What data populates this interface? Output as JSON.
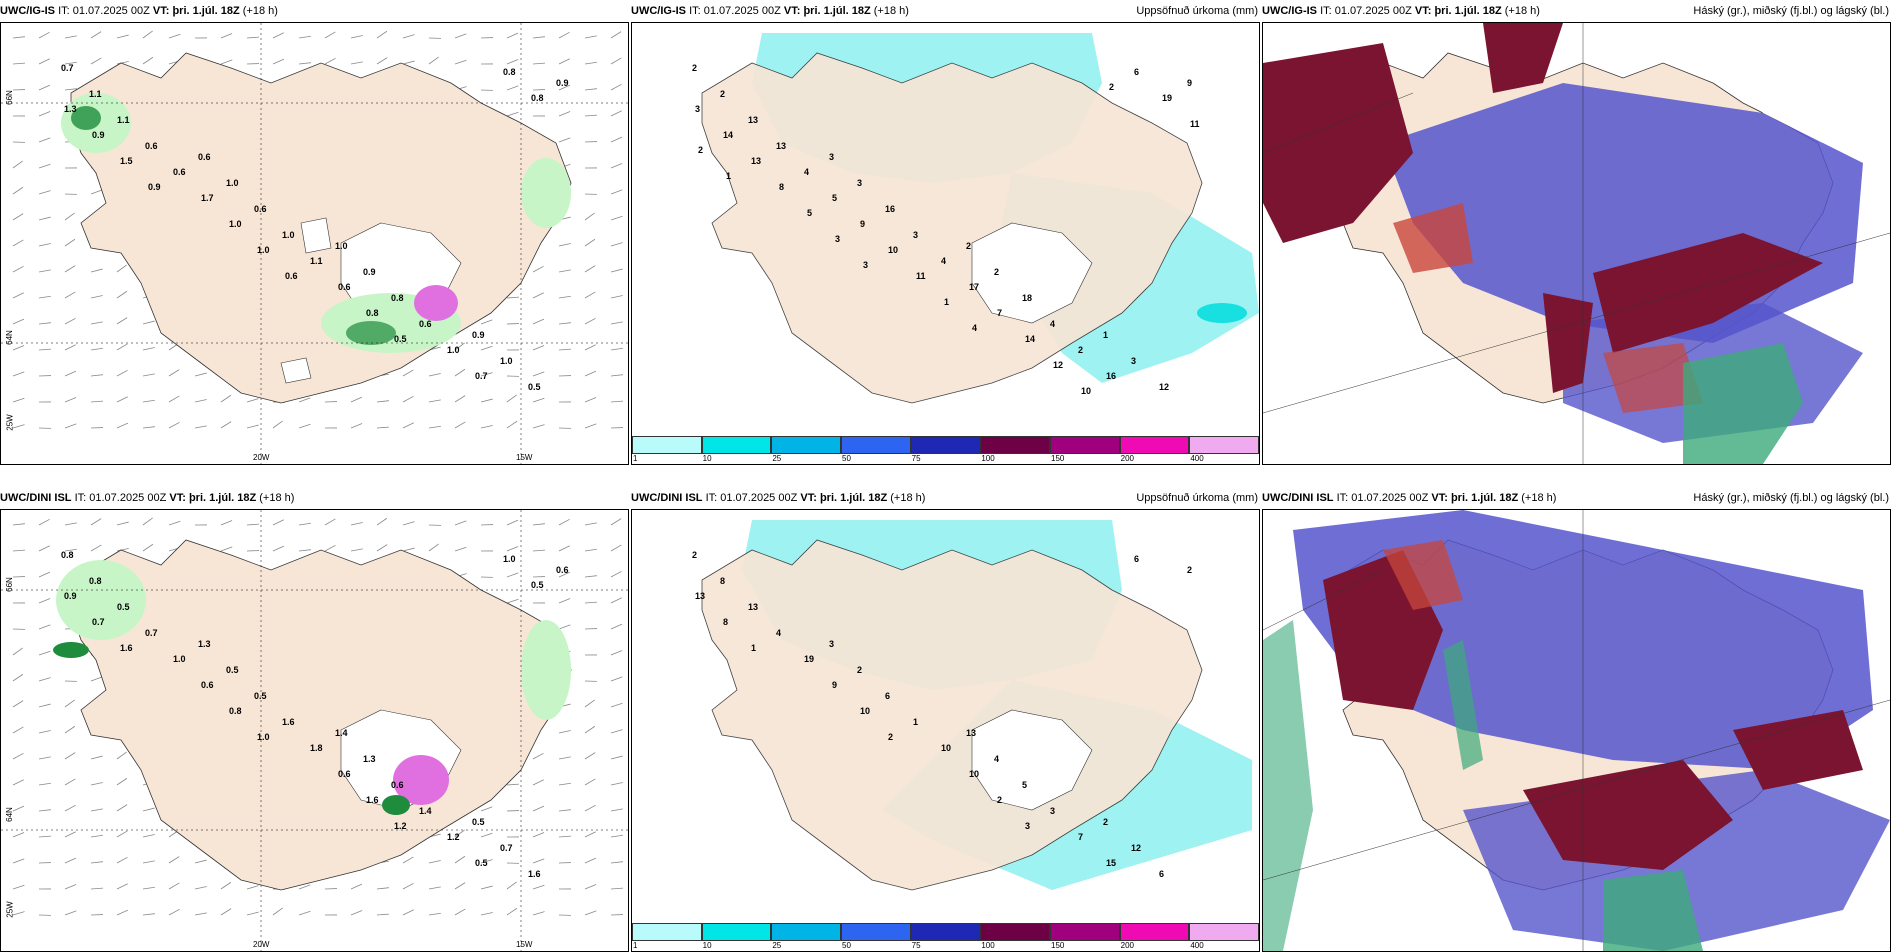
{
  "panels": [
    {
      "model": "UWC/IG-IS",
      "init_label": "IT:",
      "init": "01.07.2025 00Z",
      "valid_label": "VT:",
      "valid": "þri. 1.júl. 18Z",
      "lead": "(+18 h)",
      "right_title": "",
      "lon_labels": [
        "20W",
        "15W"
      ],
      "lat_labels": [
        "66N",
        "64N",
        "25W"
      ],
      "values": [
        "0.7",
        "0.6",
        "1.0",
        "0.9",
        "1.1",
        "1.0",
        "0.9",
        "1.0",
        "1.1",
        "0.6",
        "0.8",
        "0.5",
        "0.6",
        "1.0",
        "0.6",
        "0.9",
        "0.6",
        "1.1",
        "1.0",
        "1.3",
        "1.7",
        "0.6",
        "0.7",
        "0.9",
        "1.0",
        "0.8",
        "0.8",
        "1.5",
        "1.0",
        "0.5",
        "0.8",
        "0.9",
        "0.6"
      ]
    },
    {
      "model": "UWC/IG-IS",
      "init_label": "IT:",
      "init": "01.07.2025 00Z",
      "valid_label": "VT:",
      "valid": "þri. 1.júl. 18Z",
      "lead": "(+18 h)",
      "right_title": "Uppsöfnuð úrkoma (mm)",
      "values": [
        "2",
        "3",
        "2",
        "1",
        "2",
        "3",
        "2",
        "3",
        "13",
        "16",
        "18",
        "12",
        "13",
        "3",
        "4",
        "9",
        "4",
        "4",
        "2",
        "3",
        "5",
        "17",
        "16",
        "14",
        "9",
        "7",
        "6",
        "13",
        "10",
        "14",
        "19",
        "8",
        "11",
        "12",
        "11",
        "5",
        "1",
        "10",
        "2",
        "3",
        "4",
        "2",
        "1",
        "3"
      ],
      "colorbar": [
        "1",
        "10",
        "25",
        "50",
        "75",
        "100",
        "150",
        "200",
        "400"
      ]
    },
    {
      "model": "UWC/IG-IS",
      "init_label": "IT:",
      "init": "01.07.2025 00Z",
      "valid_label": "VT:",
      "valid": "þri. 1.júl. 18Z",
      "lead": "(+18 h)",
      "right_title": "Háský (gr.), miðský (fj.bl.) og lágský (bl.)"
    },
    {
      "model": "UWC/DINI ISL",
      "init_label": "IT:",
      "init": "01.07.2025 00Z",
      "valid_label": "VT:",
      "valid": "þri. 1.júl. 18Z",
      "lead": "(+18 h)",
      "right_title": "",
      "lon_labels": [
        "20W",
        "15W"
      ],
      "lat_labels": [
        "66N",
        "64N",
        "25W"
      ],
      "values": [
        "0.8",
        "1.3",
        "1.4",
        "0.5",
        "0.8",
        "0.5",
        "1.3",
        "0.7",
        "0.5",
        "0.5",
        "0.6",
        "1.6",
        "0.7",
        "1.6",
        "1.4",
        "0.6",
        "1.0",
        "1.8",
        "1.2",
        "0.9",
        "0.6",
        "0.6",
        "0.5",
        "0.7",
        "0.8",
        "1.6",
        "1.0",
        "1.6",
        "1.0",
        "1.2",
        "0.5"
      ]
    },
    {
      "model": "UWC/DINI ISL",
      "init_label": "IT:",
      "init": "01.07.2025 00Z",
      "valid_label": "VT:",
      "valid": "þri. 1.júl. 18Z",
      "lead": "(+18 h)",
      "right_title": "Uppsöfnuð úrkoma (mm)",
      "values": [
        "2",
        "3",
        "13",
        "2",
        "8",
        "2",
        "4",
        "12",
        "13",
        "6",
        "5",
        "6",
        "4",
        "1",
        "3",
        "2",
        "19",
        "10",
        "7",
        "13",
        "9",
        "10",
        "15",
        "8",
        "10",
        "2",
        "6",
        "1",
        "2",
        "3"
      ],
      "colorbar": [
        "1",
        "10",
        "25",
        "50",
        "75",
        "100",
        "150",
        "200",
        "400"
      ]
    },
    {
      "model": "UWC/DINI ISL",
      "init_label": "IT:",
      "init": "01.07.2025 00Z",
      "valid_label": "VT:",
      "valid": "þri. 1.júl. 18Z",
      "lead": "(+18 h)",
      "right_title": "Háský (gr.), miðský (fj.bl.) og lágský (bl.)"
    }
  ],
  "colorbar_colors": [
    "#b9fafa",
    "#00e6e6",
    "#00b4e6",
    "#2d64f0",
    "#1e28b4",
    "#6e0046",
    "#a0007d",
    "#f00ab4",
    "#f0aaf0"
  ],
  "map_colors": {
    "land": "#f7e6d6",
    "sea": "#ffffff",
    "cyan": "#9ef2f2",
    "cyan_dark": "#19e0e0",
    "green_light": "#c8f5c8",
    "green_dark": "#1e8c3c",
    "magenta": "#e070e0",
    "cloud_blue": "#5555cc",
    "cloud_maroon": "#7a1430",
    "cloud_red": "#c8463c",
    "cloud_green": "#3caa7a"
  }
}
